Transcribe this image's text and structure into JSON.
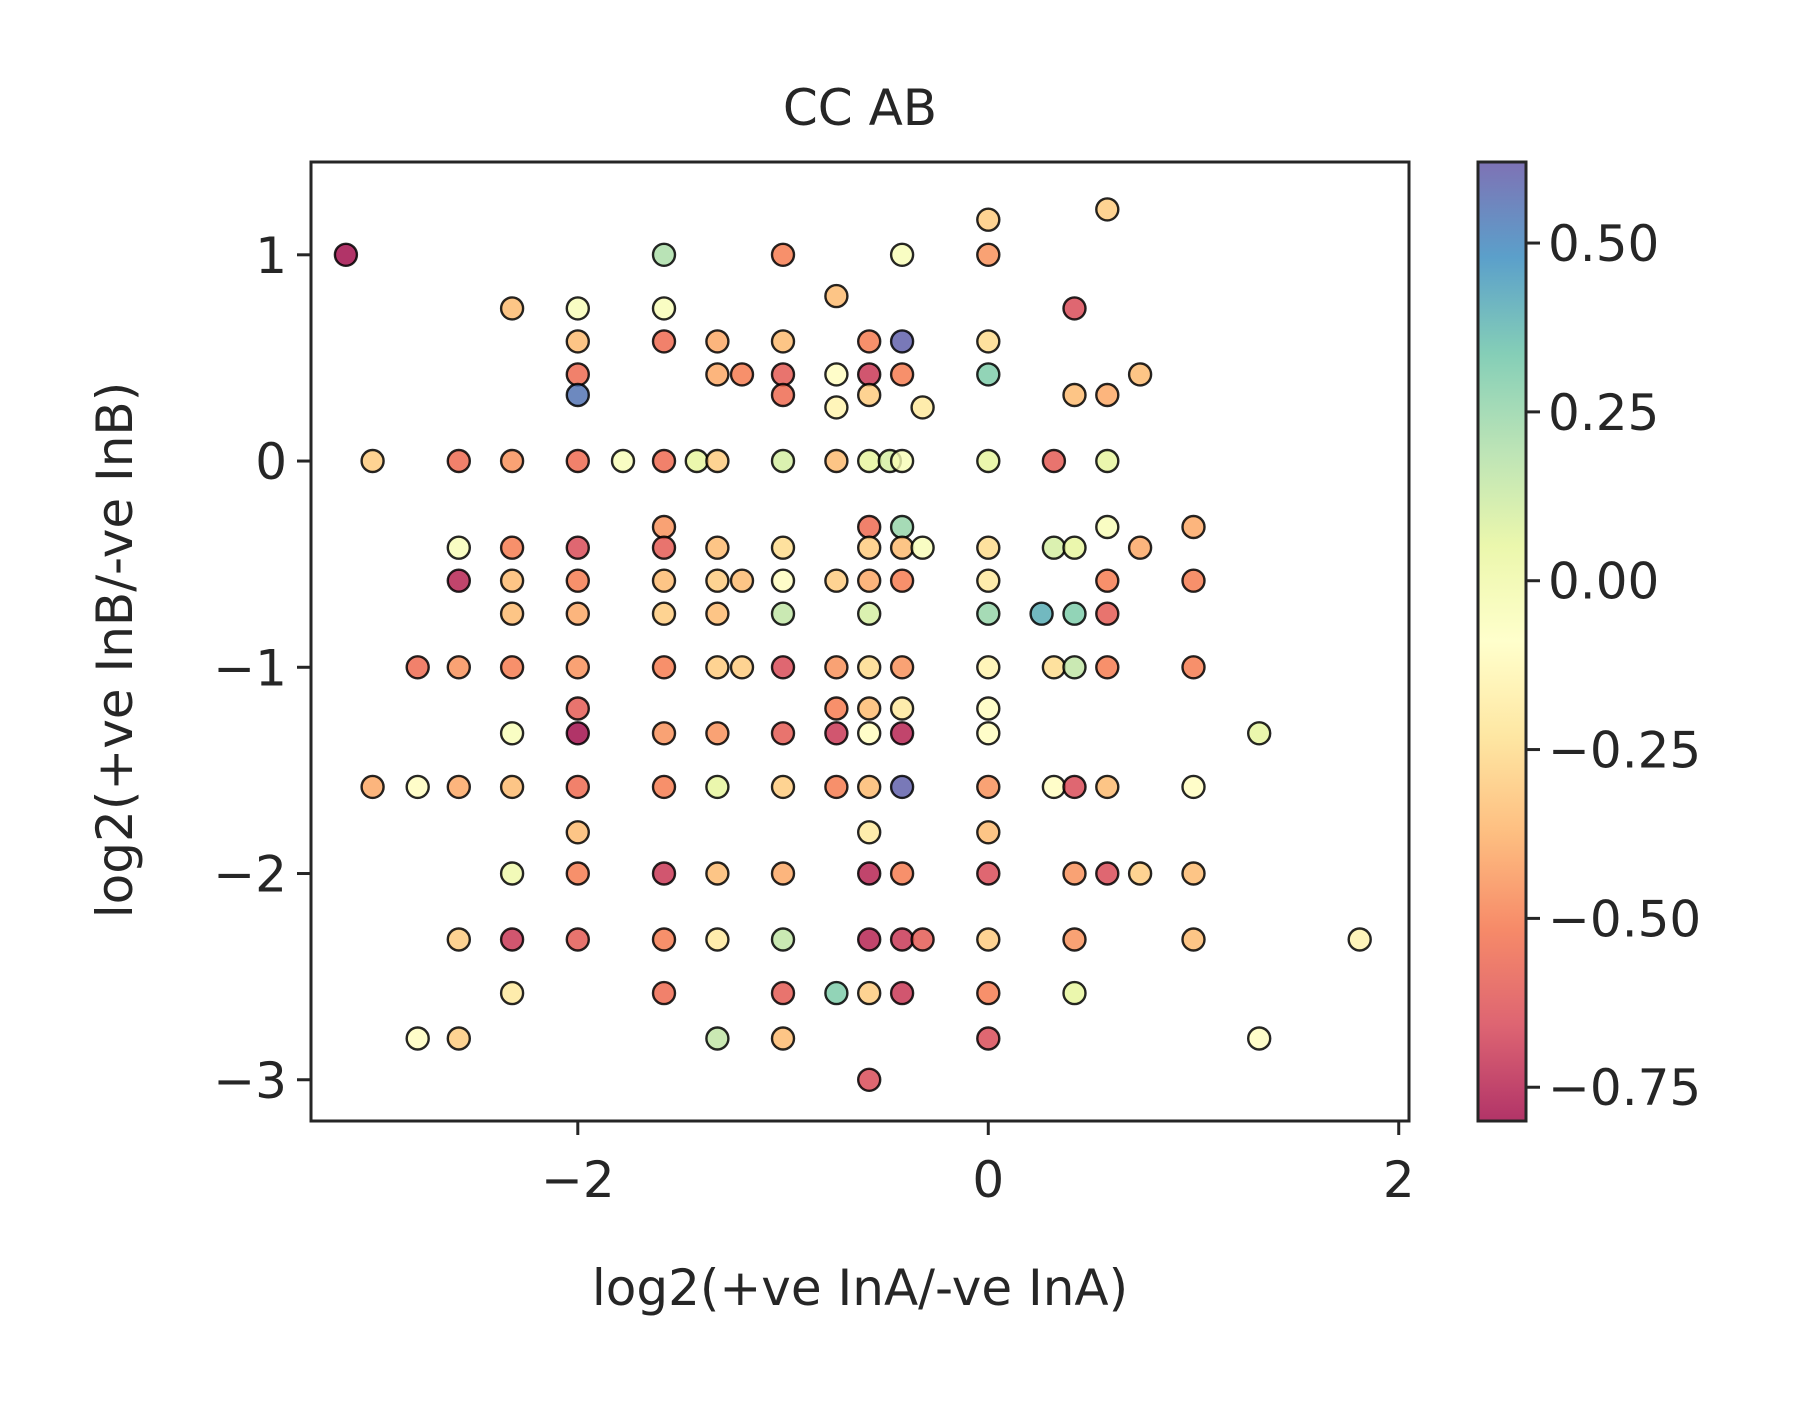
{
  "chart_data": {
    "type": "scatter",
    "title": "CC AB",
    "xlabel": "log2(+ve InA/-ve InA)",
    "ylabel": "log2(+ve InB/-ve InB)",
    "xlim": [
      -3.3,
      2.05
    ],
    "ylim": [
      -3.2,
      1.45
    ],
    "xticks": [
      -2,
      0,
      2
    ],
    "xtick_labels": [
      "−2",
      "0",
      "2"
    ],
    "yticks": [
      1,
      0,
      -1,
      -2,
      -3
    ],
    "ytick_labels": [
      "1",
      "0",
      "−1",
      "−2",
      "−3"
    ],
    "grid": false,
    "colorbar": {
      "colormap": "Spectral",
      "range": [
        -0.8,
        0.62
      ],
      "ticks": [
        0.5,
        0.25,
        0.0,
        -0.25,
        -0.5,
        -0.75
      ],
      "tick_labels": [
        "0.50",
        "0.25",
        "0.00",
        "−0.25",
        "−0.50",
        "−0.75"
      ]
    },
    "points": [
      {
        "x": -3.13,
        "y": 1.0,
        "c": -0.8
      },
      {
        "x": -2.32,
        "y": 0.74,
        "c": -0.35
      },
      {
        "x": -2.0,
        "y": 0.74,
        "c": -0.05
      },
      {
        "x": -2.0,
        "y": 0.58,
        "c": -0.35
      },
      {
        "x": -2.0,
        "y": 0.42,
        "c": -0.55
      },
      {
        "x": -2.0,
        "y": 0.32,
        "c": 0.55
      },
      {
        "x": -1.58,
        "y": 1.0,
        "c": 0.2
      },
      {
        "x": -1.58,
        "y": 0.74,
        "c": -0.05
      },
      {
        "x": -1.58,
        "y": 0.58,
        "c": -0.55
      },
      {
        "x": -1.32,
        "y": 0.58,
        "c": -0.4
      },
      {
        "x": -1.32,
        "y": 0.42,
        "c": -0.4
      },
      {
        "x": -1.2,
        "y": 0.42,
        "c": -0.5
      },
      {
        "x": -1.0,
        "y": 1.0,
        "c": -0.5
      },
      {
        "x": -1.0,
        "y": 0.58,
        "c": -0.35
      },
      {
        "x": -1.0,
        "y": 0.42,
        "c": -0.6
      },
      {
        "x": -1.0,
        "y": 0.32,
        "c": -0.55
      },
      {
        "x": -0.74,
        "y": 0.8,
        "c": -0.35
      },
      {
        "x": -0.74,
        "y": 0.42,
        "c": -0.1
      },
      {
        "x": -0.74,
        "y": 0.26,
        "c": -0.15
      },
      {
        "x": -0.58,
        "y": 0.58,
        "c": -0.5
      },
      {
        "x": -0.58,
        "y": 0.42,
        "c": -0.7
      },
      {
        "x": -0.58,
        "y": 0.32,
        "c": -0.3
      },
      {
        "x": -0.42,
        "y": 1.0,
        "c": -0.05
      },
      {
        "x": -0.42,
        "y": 0.58,
        "c": 0.6
      },
      {
        "x": -0.42,
        "y": 0.42,
        "c": -0.5
      },
      {
        "x": -0.32,
        "y": 0.26,
        "c": -0.2
      },
      {
        "x": 0.0,
        "y": 1.17,
        "c": -0.3
      },
      {
        "x": 0.0,
        "y": 1.0,
        "c": -0.45
      },
      {
        "x": 0.0,
        "y": 0.58,
        "c": -0.25
      },
      {
        "x": 0.0,
        "y": 0.42,
        "c": 0.3
      },
      {
        "x": 0.42,
        "y": 0.74,
        "c": -0.65
      },
      {
        "x": 0.42,
        "y": 0.32,
        "c": -0.35
      },
      {
        "x": 0.58,
        "y": 1.22,
        "c": -0.3
      },
      {
        "x": 0.58,
        "y": 0.32,
        "c": -0.4
      },
      {
        "x": 0.74,
        "y": 0.42,
        "c": -0.35
      },
      {
        "x": -3.0,
        "y": 0.0,
        "c": -0.3
      },
      {
        "x": -2.58,
        "y": 0.0,
        "c": -0.55
      },
      {
        "x": -2.32,
        "y": 0.0,
        "c": -0.45
      },
      {
        "x": -2.0,
        "y": 0.0,
        "c": -0.55
      },
      {
        "x": -1.78,
        "y": 0.0,
        "c": -0.05
      },
      {
        "x": -1.58,
        "y": 0.0,
        "c": -0.55
      },
      {
        "x": -1.42,
        "y": 0.0,
        "c": 0.05
      },
      {
        "x": -1.32,
        "y": 0.0,
        "c": -0.3
      },
      {
        "x": -1.0,
        "y": 0.0,
        "c": 0.1
      },
      {
        "x": -0.74,
        "y": 0.0,
        "c": -0.35
      },
      {
        "x": -0.58,
        "y": 0.0,
        "c": 0.05
      },
      {
        "x": -0.48,
        "y": 0.0,
        "c": 0.1
      },
      {
        "x": -0.42,
        "y": 0.0,
        "c": -0.05
      },
      {
        "x": 0.0,
        "y": 0.0,
        "c": 0.05
      },
      {
        "x": 0.32,
        "y": 0.0,
        "c": -0.6
      },
      {
        "x": 0.58,
        "y": 0.0,
        "c": 0.05
      },
      {
        "x": -2.58,
        "y": -0.42,
        "c": -0.05
      },
      {
        "x": -2.32,
        "y": -0.42,
        "c": -0.5
      },
      {
        "x": -2.58,
        "y": -0.58,
        "c": -0.75
      },
      {
        "x": -2.32,
        "y": -0.58,
        "c": -0.35
      },
      {
        "x": -2.32,
        "y": -0.74,
        "c": -0.35
      },
      {
        "x": -2.0,
        "y": -0.42,
        "c": -0.65
      },
      {
        "x": -2.0,
        "y": -0.58,
        "c": -0.5
      },
      {
        "x": -2.0,
        "y": -0.74,
        "c": -0.4
      },
      {
        "x": -1.58,
        "y": -0.32,
        "c": -0.45
      },
      {
        "x": -1.58,
        "y": -0.42,
        "c": -0.6
      },
      {
        "x": -1.58,
        "y": -0.58,
        "c": -0.35
      },
      {
        "x": -1.58,
        "y": -0.74,
        "c": -0.3
      },
      {
        "x": -1.32,
        "y": -0.42,
        "c": -0.35
      },
      {
        "x": -1.32,
        "y": -0.58,
        "c": -0.3
      },
      {
        "x": -1.2,
        "y": -0.58,
        "c": -0.35
      },
      {
        "x": -1.32,
        "y": -0.74,
        "c": -0.35
      },
      {
        "x": -1.0,
        "y": -0.42,
        "c": -0.25
      },
      {
        "x": -1.0,
        "y": -0.58,
        "c": -0.1
      },
      {
        "x": -1.0,
        "y": -0.74,
        "c": 0.15
      },
      {
        "x": -0.74,
        "y": -0.58,
        "c": -0.3
      },
      {
        "x": -0.58,
        "y": -0.32,
        "c": -0.55
      },
      {
        "x": -0.58,
        "y": -0.42,
        "c": -0.3
      },
      {
        "x": -0.58,
        "y": -0.58,
        "c": -0.4
      },
      {
        "x": -0.58,
        "y": -0.74,
        "c": 0.1
      },
      {
        "x": -0.42,
        "y": -0.32,
        "c": 0.25
      },
      {
        "x": -0.42,
        "y": -0.42,
        "c": -0.35
      },
      {
        "x": -0.32,
        "y": -0.42,
        "c": -0.05
      },
      {
        "x": -0.42,
        "y": -0.58,
        "c": -0.5
      },
      {
        "x": 0.0,
        "y": -0.42,
        "c": -0.25
      },
      {
        "x": 0.0,
        "y": -0.58,
        "c": -0.2
      },
      {
        "x": 0.0,
        "y": -0.74,
        "c": 0.25
      },
      {
        "x": 0.26,
        "y": -0.74,
        "c": 0.4
      },
      {
        "x": 0.32,
        "y": -0.42,
        "c": 0.1
      },
      {
        "x": 0.42,
        "y": -0.42,
        "c": 0.05
      },
      {
        "x": 0.42,
        "y": -0.74,
        "c": 0.3
      },
      {
        "x": 0.58,
        "y": -0.32,
        "c": -0.05
      },
      {
        "x": 0.58,
        "y": -0.58,
        "c": -0.5
      },
      {
        "x": 0.58,
        "y": -0.74,
        "c": -0.6
      },
      {
        "x": 0.74,
        "y": -0.42,
        "c": -0.4
      },
      {
        "x": 1.0,
        "y": -0.32,
        "c": -0.4
      },
      {
        "x": 1.0,
        "y": -0.58,
        "c": -0.5
      },
      {
        "x": -2.78,
        "y": -1.0,
        "c": -0.55
      },
      {
        "x": -2.58,
        "y": -1.0,
        "c": -0.45
      },
      {
        "x": -2.32,
        "y": -1.0,
        "c": -0.5
      },
      {
        "x": -2.0,
        "y": -1.0,
        "c": -0.45
      },
      {
        "x": -1.58,
        "y": -1.0,
        "c": -0.5
      },
      {
        "x": -1.32,
        "y": -1.0,
        "c": -0.3
      },
      {
        "x": -1.2,
        "y": -1.0,
        "c": -0.3
      },
      {
        "x": -1.0,
        "y": -1.0,
        "c": -0.65
      },
      {
        "x": -0.74,
        "y": -1.0,
        "c": -0.45
      },
      {
        "x": -0.58,
        "y": -1.0,
        "c": -0.25
      },
      {
        "x": -0.42,
        "y": -1.0,
        "c": -0.45
      },
      {
        "x": 0.0,
        "y": -1.0,
        "c": -0.15
      },
      {
        "x": 0.32,
        "y": -1.0,
        "c": -0.25
      },
      {
        "x": 0.42,
        "y": -1.0,
        "c": 0.15
      },
      {
        "x": 0.58,
        "y": -1.0,
        "c": -0.5
      },
      {
        "x": 1.0,
        "y": -1.0,
        "c": -0.5
      },
      {
        "x": -2.32,
        "y": -1.32,
        "c": -0.05
      },
      {
        "x": -2.0,
        "y": -1.2,
        "c": -0.6
      },
      {
        "x": -2.0,
        "y": -1.32,
        "c": -0.8
      },
      {
        "x": -1.58,
        "y": -1.32,
        "c": -0.45
      },
      {
        "x": -1.32,
        "y": -1.32,
        "c": -0.45
      },
      {
        "x": -1.0,
        "y": -1.32,
        "c": -0.6
      },
      {
        "x": -0.74,
        "y": -1.2,
        "c": -0.5
      },
      {
        "x": -0.74,
        "y": -1.32,
        "c": -0.7
      },
      {
        "x": -0.58,
        "y": -1.2,
        "c": -0.35
      },
      {
        "x": -0.58,
        "y": -1.32,
        "c": -0.1
      },
      {
        "x": -0.42,
        "y": -1.2,
        "c": -0.2
      },
      {
        "x": -0.42,
        "y": -1.32,
        "c": -0.75
      },
      {
        "x": 0.0,
        "y": -1.2,
        "c": -0.1
      },
      {
        "x": 0.0,
        "y": -1.32,
        "c": -0.1
      },
      {
        "x": 1.32,
        "y": -1.32,
        "c": 0.05
      },
      {
        "x": -3.0,
        "y": -1.58,
        "c": -0.4
      },
      {
        "x": -2.78,
        "y": -1.58,
        "c": -0.1
      },
      {
        "x": -2.58,
        "y": -1.58,
        "c": -0.4
      },
      {
        "x": -2.32,
        "y": -1.58,
        "c": -0.35
      },
      {
        "x": -2.0,
        "y": -1.58,
        "c": -0.55
      },
      {
        "x": -1.58,
        "y": -1.58,
        "c": -0.5
      },
      {
        "x": -1.32,
        "y": -1.58,
        "c": 0.05
      },
      {
        "x": -1.0,
        "y": -1.58,
        "c": -0.3
      },
      {
        "x": -0.74,
        "y": -1.58,
        "c": -0.5
      },
      {
        "x": -0.58,
        "y": -1.58,
        "c": -0.35
      },
      {
        "x": -0.42,
        "y": -1.58,
        "c": 0.6
      },
      {
        "x": 0.0,
        "y": -1.58,
        "c": -0.45
      },
      {
        "x": 0.32,
        "y": -1.58,
        "c": -0.1
      },
      {
        "x": 0.42,
        "y": -1.58,
        "c": -0.65
      },
      {
        "x": 0.58,
        "y": -1.58,
        "c": -0.35
      },
      {
        "x": 1.0,
        "y": -1.58,
        "c": -0.1
      },
      {
        "x": -2.0,
        "y": -1.8,
        "c": -0.35
      },
      {
        "x": -0.58,
        "y": -1.8,
        "c": -0.2
      },
      {
        "x": 0.0,
        "y": -1.8,
        "c": -0.35
      },
      {
        "x": -2.32,
        "y": -2.0,
        "c": 0.0
      },
      {
        "x": -2.0,
        "y": -2.0,
        "c": -0.5
      },
      {
        "x": -1.58,
        "y": -2.0,
        "c": -0.7
      },
      {
        "x": -1.32,
        "y": -2.0,
        "c": -0.35
      },
      {
        "x": -1.0,
        "y": -2.0,
        "c": -0.4
      },
      {
        "x": -0.58,
        "y": -2.0,
        "c": -0.75
      },
      {
        "x": -0.42,
        "y": -2.0,
        "c": -0.5
      },
      {
        "x": 0.0,
        "y": -2.0,
        "c": -0.65
      },
      {
        "x": 0.42,
        "y": -2.0,
        "c": -0.45
      },
      {
        "x": 0.58,
        "y": -2.0,
        "c": -0.65
      },
      {
        "x": 0.74,
        "y": -2.0,
        "c": -0.3
      },
      {
        "x": 1.0,
        "y": -2.0,
        "c": -0.35
      },
      {
        "x": -2.58,
        "y": -2.32,
        "c": -0.3
      },
      {
        "x": -2.32,
        "y": -2.32,
        "c": -0.7
      },
      {
        "x": -2.0,
        "y": -2.32,
        "c": -0.6
      },
      {
        "x": -1.58,
        "y": -2.32,
        "c": -0.5
      },
      {
        "x": -1.32,
        "y": -2.32,
        "c": -0.2
      },
      {
        "x": -1.0,
        "y": -2.32,
        "c": 0.15
      },
      {
        "x": -0.58,
        "y": -2.32,
        "c": -0.75
      },
      {
        "x": -0.42,
        "y": -2.32,
        "c": -0.7
      },
      {
        "x": -0.32,
        "y": -2.32,
        "c": -0.6
      },
      {
        "x": 0.0,
        "y": -2.32,
        "c": -0.3
      },
      {
        "x": 0.42,
        "y": -2.32,
        "c": -0.45
      },
      {
        "x": 1.0,
        "y": -2.32,
        "c": -0.35
      },
      {
        "x": 1.81,
        "y": -2.32,
        "c": -0.15
      },
      {
        "x": -2.32,
        "y": -2.58,
        "c": -0.2
      },
      {
        "x": -1.58,
        "y": -2.58,
        "c": -0.55
      },
      {
        "x": -1.0,
        "y": -2.58,
        "c": -0.6
      },
      {
        "x": -0.74,
        "y": -2.58,
        "c": 0.3
      },
      {
        "x": -0.58,
        "y": -2.58,
        "c": -0.3
      },
      {
        "x": -0.42,
        "y": -2.58,
        "c": -0.7
      },
      {
        "x": 0.0,
        "y": -2.58,
        "c": -0.5
      },
      {
        "x": 0.42,
        "y": -2.58,
        "c": 0.05
      },
      {
        "x": -2.78,
        "y": -2.8,
        "c": -0.1
      },
      {
        "x": -2.58,
        "y": -2.8,
        "c": -0.3
      },
      {
        "x": -1.32,
        "y": -2.8,
        "c": 0.15
      },
      {
        "x": -1.0,
        "y": -2.8,
        "c": -0.35
      },
      {
        "x": 0.0,
        "y": -2.8,
        "c": -0.65
      },
      {
        "x": 1.32,
        "y": -2.8,
        "c": -0.1
      },
      {
        "x": -0.58,
        "y": -3.0,
        "c": -0.65
      }
    ]
  }
}
